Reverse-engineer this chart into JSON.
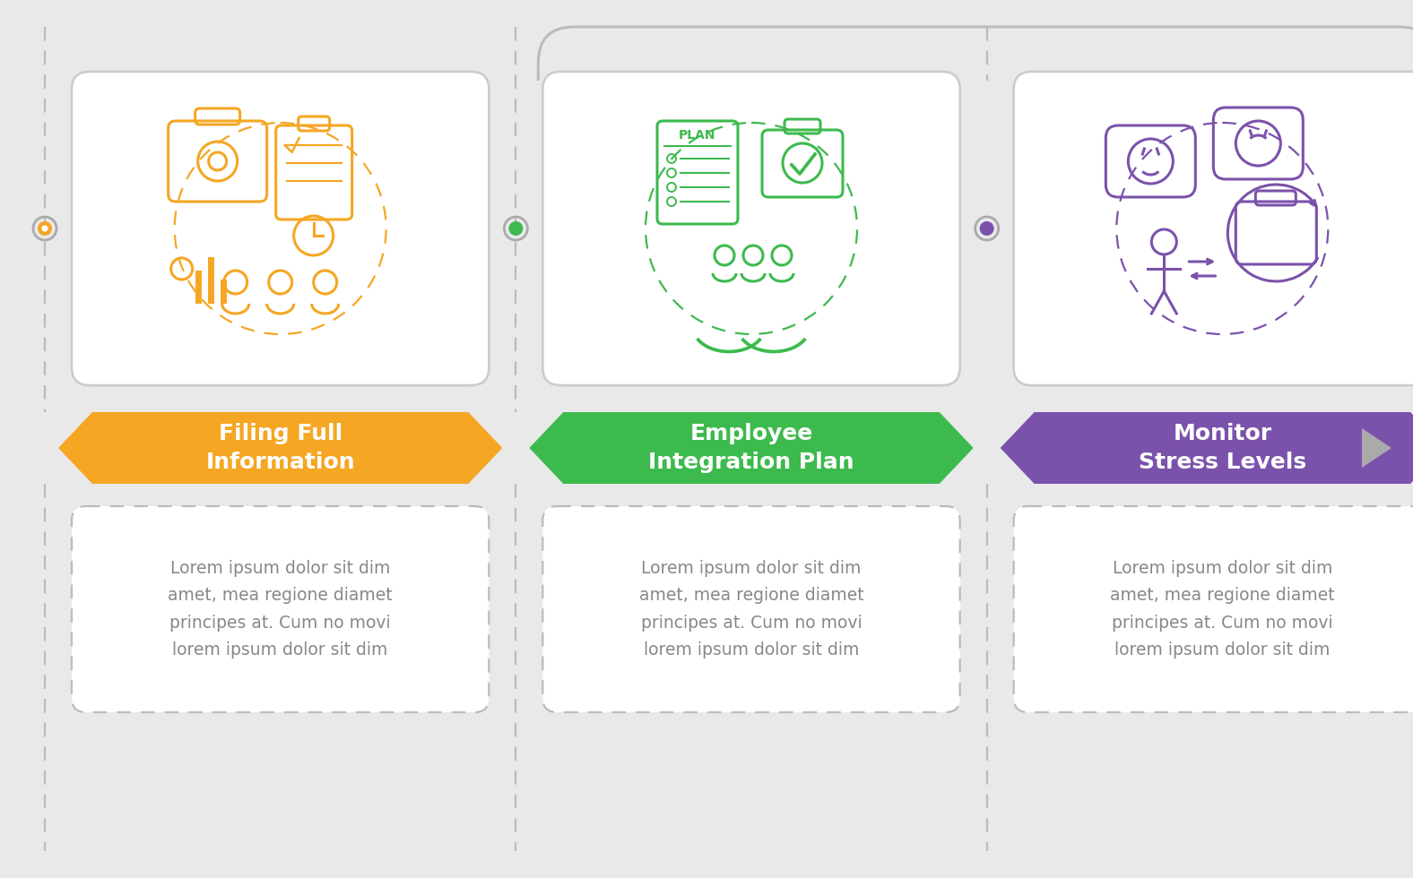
{
  "background_color": "#e9e9e9",
  "steps": [
    {
      "title": "Filing Full\nInformation",
      "color": "#f5a623",
      "dot_color": "#f5a623",
      "icon_color": "#f5a623",
      "text": "Lorem ipsum dolor sit dim\namet, mea regione diamet\nprincipes at. Cum no movi\nlorem ipsum dolor sit dim"
    },
    {
      "title": "Employee\nIntegration Plan",
      "color": "#3dba4e",
      "dot_color": "#3dba4e",
      "icon_color": "#3dba4e",
      "text": "Lorem ipsum dolor sit dim\namet, mea regione diamet\nprincipes at. Cum no movi\nlorem ipsum dolor sit dim"
    },
    {
      "title": "Monitor\nStress Levels",
      "color": "#7b52ab",
      "dot_color": "#7b52ab",
      "icon_color": "#7b52ab",
      "text": "Lorem ipsum dolor sit dim\namet, mea regione diamet\nprincipes at. Cum no movi\nlorem ipsum dolor sit dim"
    }
  ],
  "connector_color": "#bbbbbb",
  "box_border_color": "#cccccc",
  "text_color": "#888888",
  "dot_outline_color": "#aaaaaa"
}
